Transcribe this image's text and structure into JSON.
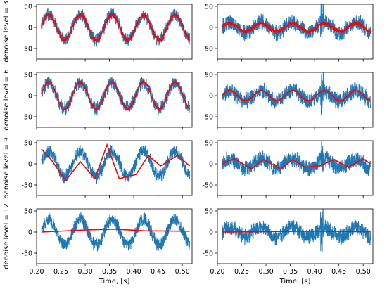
{
  "colors": {
    "raw": "#1f77b4",
    "denoised": "#ff0000",
    "axes": "#000000"
  },
  "chart_data": [
    {
      "type": "line",
      "row": 1,
      "col": 1,
      "ylabel": "denoise level = 3",
      "xlabel": "",
      "xlim": [
        0.2,
        0.52
      ],
      "ylim": [
        -75,
        55
      ],
      "yticks": [
        50,
        0,
        -50
      ],
      "xticks": [
        0.2,
        0.25,
        0.3,
        0.35,
        0.4,
        0.45,
        0.5
      ],
      "show_xtick_labels": false,
      "signal": {
        "kind": "sine",
        "amplitude": 30,
        "period": 0.065,
        "phase": 0.225,
        "noise": 18
      },
      "denoised": {
        "kind": "sine",
        "amplitude": 30,
        "period": 0.065,
        "phase": 0.225,
        "jitter": 5
      }
    },
    {
      "type": "line",
      "row": 1,
      "col": 2,
      "ylabel": "",
      "xlabel": "",
      "xlim": [
        0.2,
        0.52
      ],
      "ylim": [
        -75,
        55
      ],
      "yticks": [
        50,
        0,
        -50
      ],
      "xticks": [
        0.2,
        0.25,
        0.3,
        0.35,
        0.4,
        0.45,
        0.5
      ],
      "show_xtick_labels": false,
      "signal": {
        "kind": "sine",
        "amplitude": 12,
        "period": 0.065,
        "phase": 0.225,
        "noise": 22
      },
      "denoised": {
        "kind": "sine",
        "amplitude": 10,
        "period": 0.065,
        "phase": 0.225,
        "jitter": 4
      }
    },
    {
      "type": "line",
      "row": 2,
      "col": 1,
      "ylabel": "denoise level = 6",
      "xlabel": "",
      "xlim": [
        0.2,
        0.52
      ],
      "ylim": [
        -75,
        55
      ],
      "yticks": [
        50,
        0,
        -50
      ],
      "xticks": [
        0.2,
        0.25,
        0.3,
        0.35,
        0.4,
        0.45,
        0.5
      ],
      "show_xtick_labels": false,
      "signal": {
        "kind": "sine",
        "amplitude": 30,
        "period": 0.065,
        "phase": 0.225,
        "noise": 18
      },
      "denoised": {
        "kind": "sine",
        "amplitude": 32,
        "period": 0.065,
        "phase": 0.225,
        "jitter": 2
      }
    },
    {
      "type": "line",
      "row": 2,
      "col": 2,
      "ylabel": "",
      "xlabel": "",
      "xlim": [
        0.2,
        0.52
      ],
      "ylim": [
        -75,
        55
      ],
      "yticks": [
        50,
        0,
        -50
      ],
      "xticks": [
        0.2,
        0.25,
        0.3,
        0.35,
        0.4,
        0.45,
        0.5
      ],
      "show_xtick_labels": false,
      "signal": {
        "kind": "sine",
        "amplitude": 12,
        "period": 0.065,
        "phase": 0.225,
        "noise": 22
      },
      "denoised": {
        "kind": "sine",
        "amplitude": 12,
        "period": 0.065,
        "phase": 0.225,
        "jitter": 1
      }
    },
    {
      "type": "line",
      "row": 3,
      "col": 1,
      "ylabel": "denoise level = 9",
      "xlabel": "",
      "xlim": [
        0.2,
        0.52
      ],
      "ylim": [
        -75,
        55
      ],
      "yticks": [
        50,
        0,
        -50
      ],
      "xticks": [
        0.2,
        0.25,
        0.3,
        0.35,
        0.4,
        0.45,
        0.5
      ],
      "show_xtick_labels": false,
      "signal": {
        "kind": "sine",
        "amplitude": 30,
        "period": 0.065,
        "phase": 0.225,
        "noise": 18
      },
      "denoised": {
        "kind": "poly",
        "x": [
          0.21,
          0.23,
          0.26,
          0.29,
          0.32,
          0.345,
          0.37,
          0.405,
          0.43,
          0.455,
          0.49,
          0.515
        ],
        "y": [
          35,
          10,
          -40,
          5,
          -35,
          45,
          -35,
          -25,
          20,
          -5,
          20,
          -5
        ]
      }
    },
    {
      "type": "line",
      "row": 3,
      "col": 2,
      "ylabel": "",
      "xlabel": "",
      "xlim": [
        0.2,
        0.52
      ],
      "ylim": [
        -75,
        55
      ],
      "yticks": [
        50,
        0,
        -50
      ],
      "xticks": [
        0.2,
        0.25,
        0.3,
        0.35,
        0.4,
        0.45,
        0.5
      ],
      "show_xtick_labels": false,
      "signal": {
        "kind": "sine",
        "amplitude": 12,
        "period": 0.065,
        "phase": 0.225,
        "noise": 22
      },
      "denoised": {
        "kind": "poly",
        "x": [
          0.21,
          0.235,
          0.27,
          0.295,
          0.33,
          0.355,
          0.38,
          0.41,
          0.44,
          0.47,
          0.5,
          0.515
        ],
        "y": [
          0,
          12,
          -12,
          10,
          -12,
          10,
          -8,
          -5,
          10,
          -8,
          12,
          0
        ]
      }
    },
    {
      "type": "line",
      "row": 4,
      "col": 1,
      "ylabel": "denoise level = 12",
      "xlabel": "Time, [s]",
      "xlim": [
        0.2,
        0.52
      ],
      "ylim": [
        -75,
        55
      ],
      "yticks": [
        50,
        0,
        -50
      ],
      "xticks": [
        0.2,
        0.25,
        0.3,
        0.35,
        0.4,
        0.45,
        0.5
      ],
      "show_xtick_labels": true,
      "signal": {
        "kind": "sine",
        "amplitude": 30,
        "period": 0.065,
        "phase": 0.225,
        "noise": 18
      },
      "denoised": {
        "kind": "poly",
        "x": [
          0.21,
          0.3,
          0.36,
          0.42,
          0.515
        ],
        "y": [
          0,
          5,
          7,
          3,
          2
        ]
      }
    },
    {
      "type": "line",
      "row": 4,
      "col": 2,
      "ylabel": "",
      "xlabel": "Time, [s]",
      "xlim": [
        0.2,
        0.52
      ],
      "ylim": [
        -75,
        55
      ],
      "yticks": [
        50,
        0,
        -50
      ],
      "xticks": [
        0.2,
        0.25,
        0.3,
        0.35,
        0.4,
        0.45,
        0.5
      ],
      "show_xtick_labels": true,
      "signal": {
        "kind": "sine",
        "amplitude": 12,
        "period": 0.065,
        "phase": 0.225,
        "noise": 22
      },
      "denoised": {
        "kind": "poly",
        "x": [
          0.21,
          0.3,
          0.4,
          0.515
        ],
        "y": [
          0,
          1,
          2,
          1
        ]
      }
    }
  ]
}
